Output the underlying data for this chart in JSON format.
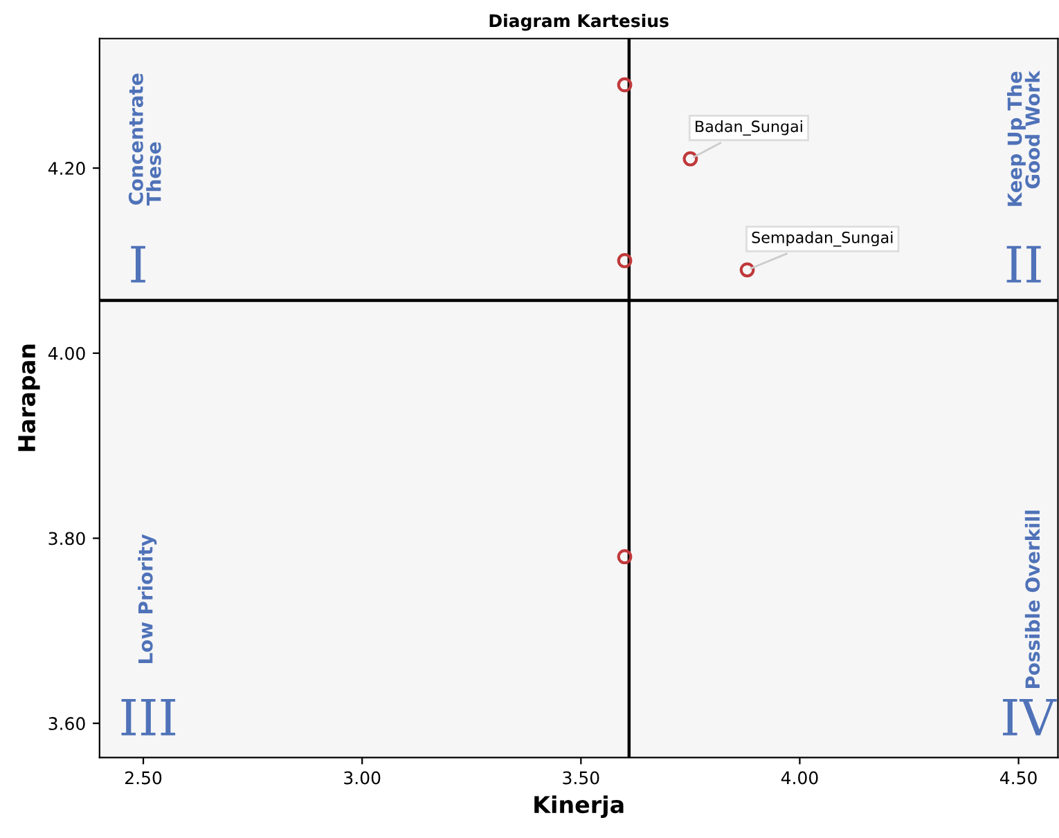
{
  "chart_data": {
    "type": "scatter",
    "title": "Diagram Kartesius",
    "xlabel": "Kinerja",
    "ylabel": "Harapan",
    "x": [
      3.75,
      3.88,
      3.6,
      3.6,
      3.6
    ],
    "series": [
      {
        "color": "#c0393b",
        "values": [
          4.21,
          4.09,
          4.29,
          4.1,
          3.78
        ]
      }
    ],
    "marker": "circle",
    "xlim": [
      2.4,
      4.59
    ],
    "ylim": [
      3.563,
      4.34
    ],
    "xticks": [
      {
        "value": 2.5,
        "label": "2.50"
      },
      {
        "value": 3.0,
        "label": "3.00"
      },
      {
        "value": 3.5,
        "label": "3.50"
      },
      {
        "value": 4.0,
        "label": "4.00"
      },
      {
        "value": 4.5,
        "label": "4.50"
      }
    ],
    "yticks": [
      {
        "value": 3.6,
        "label": "3.60"
      },
      {
        "value": 3.8,
        "label": "3.80"
      },
      {
        "value": 4.0,
        "label": "4.00"
      },
      {
        "value": 4.2,
        "label": "4.20"
      }
    ],
    "ref_lines": [
      {
        "axis": "x",
        "value": 3.61,
        "color": "#000000"
      },
      {
        "axis": "y",
        "value": 4.057,
        "color": "#000000"
      }
    ],
    "grid": false,
    "legend": false,
    "annotations": [
      {
        "text": "Badan_Sungai",
        "x": 3.75,
        "y": 4.21
      },
      {
        "text": "Sempadan_Sungai",
        "x": 3.88,
        "y": 4.09
      },
      "Concentrate\nThese",
      "I",
      "Keep Up The\nGood Work",
      "II",
      "Low Priority",
      "III",
      "Possible Overkill",
      "IV"
    ]
  }
}
